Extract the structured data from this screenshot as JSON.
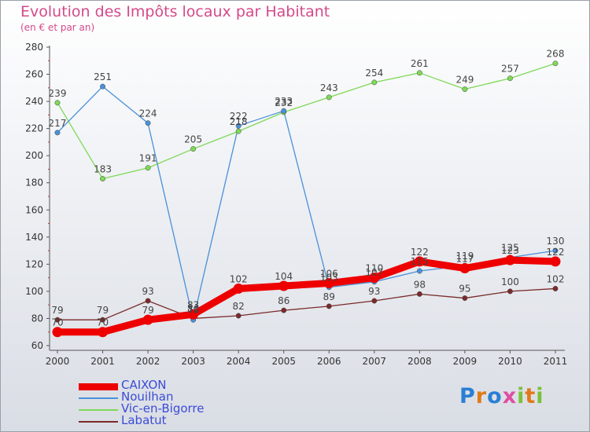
{
  "header": {
    "title": "Evolution des Impôts locaux par Habitant",
    "subtitle": "(en € et par an)"
  },
  "logo": "Proxiti",
  "chart_data": {
    "type": "line",
    "title": "Evolution des Impôts locaux par Habitant",
    "subtitle": "(en € et par an)",
    "categories": [
      "2000",
      "2001",
      "2002",
      "2003",
      "2004",
      "2005",
      "2006",
      "2007",
      "2008",
      "2009",
      "2010",
      "2011"
    ],
    "ylim": [
      60,
      280
    ],
    "yticks": [
      60,
      80,
      100,
      120,
      140,
      160,
      180,
      200,
      220,
      240,
      260,
      280
    ],
    "grid": false,
    "legend_position": "bottom-left",
    "series": [
      {
        "name": "CAIXON",
        "color": "#ee0000",
        "values": [
          70,
          70,
          79,
          83,
          102,
          104,
          106,
          110,
          122,
          117,
          123,
          122
        ]
      },
      {
        "name": "Nouilhan",
        "color": "#4a90d9",
        "values": [
          217,
          251,
          224,
          79,
          222,
          233,
          103,
          107,
          115,
          119,
          125,
          130
        ]
      },
      {
        "name": "Vic-en-Bigorre",
        "color": "#7ed957",
        "values": [
          239,
          183,
          191,
          205,
          218,
          232,
          243,
          254,
          261,
          249,
          257,
          268
        ]
      },
      {
        "name": "Labatut",
        "color": "#7a2a2a",
        "values": [
          79,
          79,
          93,
          80,
          82,
          86,
          89,
          93,
          98,
          95,
          100,
          102
        ]
      }
    ]
  }
}
